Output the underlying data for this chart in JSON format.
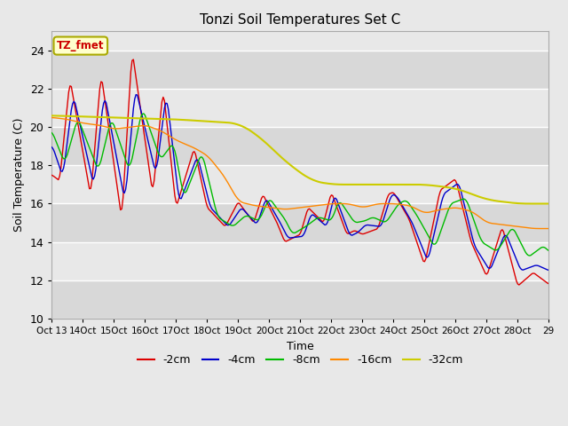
{
  "title": "Tonzi Soil Temperatures Set C",
  "xlabel": "Time",
  "ylabel": "Soil Temperature (C)",
  "ylim": [
    10,
    25
  ],
  "xlim": [
    0,
    384
  ],
  "yticks": [
    10,
    12,
    14,
    16,
    18,
    20,
    22,
    24
  ],
  "background_color": "#e8e8e8",
  "plot_bg_color": "#e8e8e8",
  "grid_color": "#ffffff",
  "series": {
    "-2cm": {
      "color": "#dd0000",
      "linewidth": 1.0
    },
    "-4cm": {
      "color": "#0000cc",
      "linewidth": 1.0
    },
    "-8cm": {
      "color": "#00bb00",
      "linewidth": 1.0
    },
    "-16cm": {
      "color": "#ff8800",
      "linewidth": 1.0
    },
    "-32cm": {
      "color": "#cccc00",
      "linewidth": 1.5
    }
  },
  "legend_box_color": "#ffffcc",
  "legend_box_edge": "#aaaa00",
  "legend_text": "TZ_fmet",
  "legend_text_color": "#cc0000",
  "band_colors": [
    "#d8d8d8",
    "#e8e8e8"
  ]
}
